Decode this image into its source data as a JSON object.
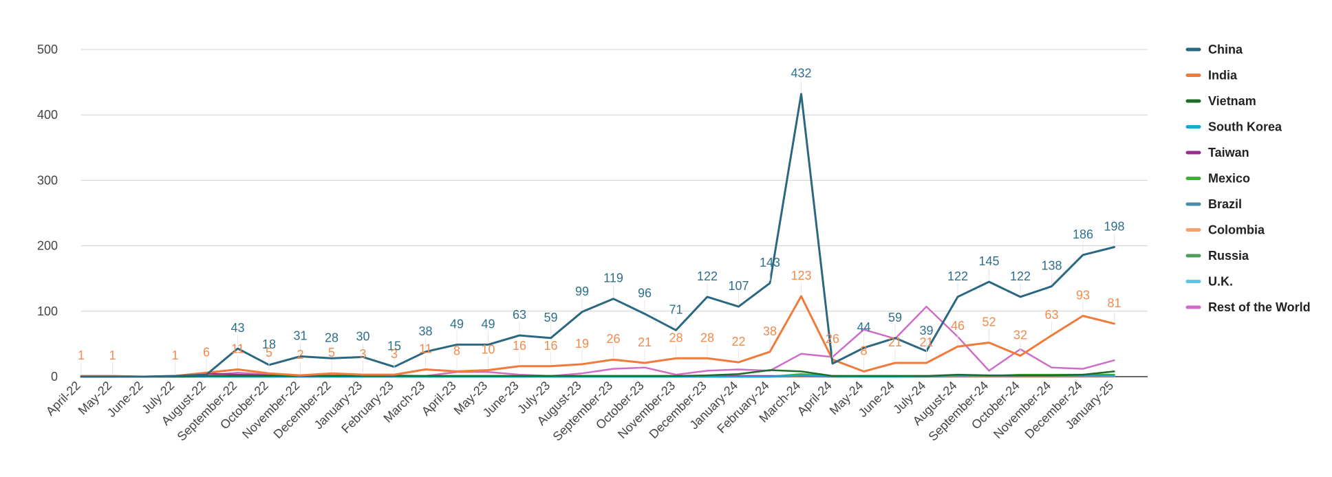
{
  "chart_data": {
    "type": "line",
    "title": "",
    "xlabel": "",
    "ylabel": "",
    "ylim": [
      0,
      500
    ],
    "yticks": [
      0,
      100,
      200,
      300,
      400,
      500
    ],
    "grid": true,
    "legend_position": "right",
    "categories": [
      "April-22",
      "May-22",
      "June-22",
      "July-22",
      "August-22",
      "September-22",
      "October-22",
      "November-22",
      "December-22",
      "January-23",
      "February-23",
      "March-23",
      "April-23",
      "May-23",
      "June-23",
      "July-23",
      "August-23",
      "September-23",
      "October-23",
      "November-23",
      "December-23",
      "January-24",
      "February-24",
      "March-24",
      "April-24",
      "May-24",
      "June-24",
      "July-24",
      "August-24",
      "September-24",
      "October-24",
      "November-24",
      "December-24",
      "January-25"
    ],
    "series": [
      {
        "name": "China",
        "color": "#2a6780",
        "labeled": true,
        "label_color": "#2e6f8c",
        "values": [
          0,
          0,
          0,
          1,
          3,
          43,
          18,
          31,
          28,
          30,
          15,
          38,
          49,
          49,
          63,
          59,
          99,
          119,
          96,
          71,
          122,
          107,
          143,
          432,
          20,
          44,
          59,
          39,
          122,
          145,
          122,
          138,
          186,
          198
        ],
        "label_text": [
          "",
          "",
          "",
          "",
          "",
          "43",
          "18",
          "31",
          "28",
          "30",
          "15",
          "38",
          "49",
          "49",
          "63",
          "59",
          "99",
          "119",
          "96",
          "71",
          "122",
          "107",
          "143",
          "432",
          "",
          "44",
          "59",
          "39",
          "122",
          "145",
          "122",
          "138",
          "186",
          "198"
        ]
      },
      {
        "name": "India",
        "color": "#f07a3a",
        "labeled": true,
        "label_color": "#f28b4d",
        "values": [
          1,
          1,
          0,
          1,
          6,
          11,
          5,
          2,
          5,
          3,
          3,
          11,
          8,
          10,
          16,
          16,
          19,
          26,
          21,
          28,
          28,
          22,
          38,
          123,
          26,
          8,
          21,
          21,
          46,
          52,
          32,
          63,
          93,
          81
        ],
        "label_text": [
          "1",
          "1",
          "",
          "1",
          "6",
          "11",
          "5",
          "2",
          "5",
          "3",
          "3",
          "11",
          "8",
          "10",
          "16",
          "16",
          "19",
          "26",
          "21",
          "28",
          "28",
          "22",
          "38",
          "123",
          "26",
          "8",
          "21",
          "21",
          "46",
          "52",
          "32",
          "63",
          "93",
          "81"
        ]
      },
      {
        "name": "Vietnam",
        "color": "#1e6b2a",
        "labeled": false,
        "values": [
          0,
          0,
          0,
          0,
          1,
          1,
          1,
          1,
          1,
          1,
          1,
          1,
          1,
          1,
          1,
          1,
          1,
          1,
          1,
          1,
          2,
          4,
          10,
          8,
          1,
          1,
          1,
          1,
          3,
          2,
          2,
          2,
          3,
          8
        ]
      },
      {
        "name": "South Korea",
        "color": "#1aa7d6",
        "labeled": false,
        "values": [
          0,
          0,
          0,
          0,
          0,
          0,
          0,
          0,
          0,
          0,
          0,
          0,
          0,
          0,
          0,
          0,
          0,
          0,
          0,
          0,
          0,
          0,
          0,
          2,
          1,
          0,
          0,
          1,
          1,
          1,
          1,
          1,
          1,
          1
        ]
      },
      {
        "name": "Taiwan",
        "color": "#9a2d8f",
        "labeled": false,
        "values": [
          0,
          0,
          0,
          0,
          5,
          3,
          2,
          1,
          1,
          1,
          1,
          1,
          1,
          1,
          1,
          1,
          1,
          1,
          1,
          1,
          1,
          1,
          1,
          1,
          1,
          1,
          1,
          1,
          1,
          1,
          1,
          1,
          1,
          1
        ]
      },
      {
        "name": "Mexico",
        "color": "#3cae3c",
        "labeled": false,
        "values": [
          0,
          0,
          0,
          0,
          0,
          0,
          0,
          0,
          0,
          0,
          0,
          0,
          0,
          0,
          0,
          0,
          0,
          0,
          0,
          0,
          0,
          0,
          0,
          4,
          1,
          0,
          0,
          1,
          2,
          1,
          3,
          3,
          3,
          3
        ]
      },
      {
        "name": "Brazil",
        "color": "#4b8ba6",
        "labeled": false,
        "values": [
          0,
          0,
          0,
          0,
          0,
          0,
          0,
          0,
          0,
          0,
          0,
          0,
          0,
          0,
          0,
          0,
          0,
          0,
          0,
          0,
          0,
          0,
          0,
          1,
          0,
          0,
          0,
          0,
          1,
          1,
          1,
          1,
          1,
          1
        ]
      },
      {
        "name": "Colombia",
        "color": "#f4a06a",
        "labeled": false,
        "values": [
          0,
          0,
          0,
          0,
          0,
          0,
          0,
          0,
          0,
          0,
          0,
          0,
          0,
          0,
          0,
          0,
          0,
          0,
          0,
          0,
          0,
          0,
          0,
          0,
          0,
          0,
          0,
          0,
          0,
          0,
          0,
          0,
          0,
          0
        ]
      },
      {
        "name": "Russia",
        "color": "#4e9e5a",
        "labeled": false,
        "values": [
          0,
          0,
          0,
          0,
          0,
          0,
          0,
          0,
          0,
          0,
          0,
          0,
          0,
          0,
          0,
          0,
          0,
          0,
          0,
          0,
          0,
          0,
          0,
          1,
          0,
          0,
          0,
          0,
          0,
          0,
          0,
          0,
          0,
          0
        ]
      },
      {
        "name": "U.K.",
        "color": "#5ec3e6",
        "labeled": false,
        "values": [
          0,
          0,
          0,
          0,
          0,
          0,
          0,
          0,
          0,
          0,
          0,
          0,
          0,
          0,
          0,
          0,
          0,
          0,
          0,
          0,
          0,
          0,
          0,
          0,
          0,
          0,
          0,
          0,
          0,
          0,
          0,
          0,
          0,
          0
        ]
      },
      {
        "name": "Rest of the World",
        "color": "#cf6cc6",
        "labeled": false,
        "values": [
          0,
          0,
          0,
          0,
          2,
          6,
          3,
          2,
          2,
          2,
          2,
          1,
          7,
          7,
          3,
          1,
          5,
          12,
          14,
          3,
          9,
          11,
          9,
          35,
          30,
          72,
          58,
          107,
          61,
          9,
          42,
          14,
          12,
          25
        ]
      }
    ]
  }
}
